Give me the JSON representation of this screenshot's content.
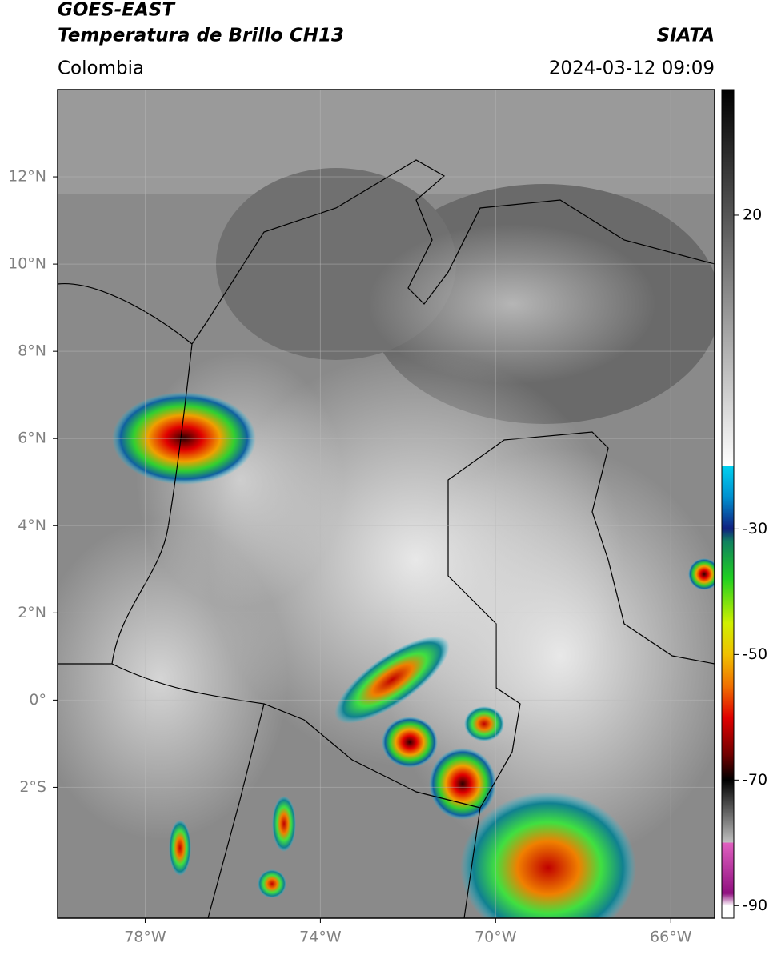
{
  "header": {
    "satellite": "GOES-EAST",
    "product": "Temperatura de Brillo CH13",
    "source": "SIATA",
    "region": "Colombia",
    "datetime": "2024-03-12 09:09"
  },
  "map": {
    "lon_range": [
      -80,
      -65
    ],
    "lat_range": [
      -5,
      14
    ],
    "lon_ticks": [
      {
        "value": -78,
        "label": "78°W"
      },
      {
        "value": -74,
        "label": "74°W"
      },
      {
        "value": -70,
        "label": "70°W"
      },
      {
        "value": -66,
        "label": "66°W"
      }
    ],
    "lat_ticks": [
      {
        "value": 12,
        "label": "12°N"
      },
      {
        "value": 10,
        "label": "10°N"
      },
      {
        "value": 8,
        "label": "8°N"
      },
      {
        "value": 6,
        "label": "6°N"
      },
      {
        "value": 4,
        "label": "4°N"
      },
      {
        "value": 2,
        "label": "2°N"
      },
      {
        "value": 0,
        "label": "0°"
      },
      {
        "value": -2,
        "label": "2°S"
      }
    ]
  },
  "colorbar": {
    "range": [
      -92,
      40
    ],
    "ticks": [
      20,
      -30,
      -50,
      -70,
      -90
    ]
  }
}
